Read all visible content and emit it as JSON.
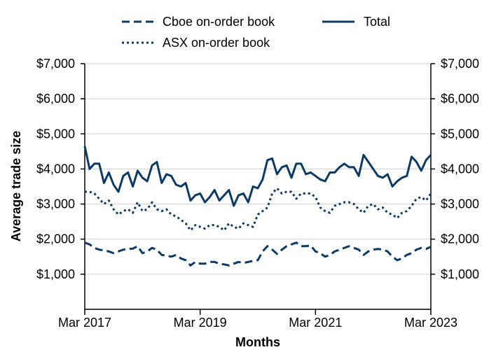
{
  "chart_data": {
    "type": "line",
    "xlabel": "Months",
    "ylabel": "Average trade size",
    "x_tick_labels": [
      "Mar 2017",
      "Mar 2019",
      "Mar 2021",
      "Mar 2023"
    ],
    "y_tick_labels_left": [
      "$1,000",
      "$2,000",
      "$3,000",
      "$4,000",
      "$5,000",
      "$6,000",
      "$7,000"
    ],
    "y_tick_labels_right": [
      "$1,000",
      "$2,000",
      "$3,000",
      "$4,000",
      "$5,000",
      "$6,000",
      "$7,000"
    ],
    "y_ticks": [
      1000,
      2000,
      3000,
      4000,
      5000,
      6000,
      7000
    ],
    "ylim": [
      0,
      7000
    ],
    "x_start": "Mar 2017",
    "x_end": "Mar 2023",
    "grid": "horizontal",
    "legend_position": "top",
    "color": "#0c3a66",
    "x": [
      "Mar 2017",
      "Apr 2017",
      "May 2017",
      "Jun 2017",
      "Jul 2017",
      "Aug 2017",
      "Sep 2017",
      "Oct 2017",
      "Nov 2017",
      "Dec 2017",
      "Jan 2018",
      "Feb 2018",
      "Mar 2018",
      "Apr 2018",
      "May 2018",
      "Jun 2018",
      "Jul 2018",
      "Aug 2018",
      "Sep 2018",
      "Oct 2018",
      "Nov 2018",
      "Dec 2018",
      "Jan 2019",
      "Feb 2019",
      "Mar 2019",
      "Apr 2019",
      "May 2019",
      "Jun 2019",
      "Jul 2019",
      "Aug 2019",
      "Sep 2019",
      "Oct 2019",
      "Nov 2019",
      "Dec 2019",
      "Jan 2020",
      "Feb 2020",
      "Mar 2020",
      "Apr 2020",
      "May 2020",
      "Jun 2020",
      "Jul 2020",
      "Aug 2020",
      "Sep 2020",
      "Oct 2020",
      "Nov 2020",
      "Dec 2020",
      "Jan 2021",
      "Feb 2021",
      "Mar 2021",
      "Apr 2021",
      "May 2021",
      "Jun 2021",
      "Jul 2021",
      "Aug 2021",
      "Sep 2021",
      "Oct 2021",
      "Nov 2021",
      "Dec 2021",
      "Jan 2022",
      "Feb 2022",
      "Mar 2022",
      "Apr 2022",
      "May 2022",
      "Jun 2022",
      "Jul 2022",
      "Aug 2022",
      "Sep 2022",
      "Oct 2022",
      "Nov 2022",
      "Dec 2022",
      "Jan 2023",
      "Feb 2023",
      "Mar 2023"
    ],
    "series": [
      {
        "name": "Cboe on-order book",
        "dash": "dashed",
        "values": [
          1900,
          1850,
          1750,
          1700,
          1680,
          1650,
          1600,
          1650,
          1700,
          1720,
          1730,
          1800,
          1600,
          1650,
          1750,
          1700,
          1550,
          1530,
          1500,
          1550,
          1450,
          1400,
          1250,
          1350,
          1300,
          1300,
          1350,
          1350,
          1300,
          1280,
          1250,
          1300,
          1350,
          1320,
          1350,
          1380,
          1400,
          1650,
          1800,
          1700,
          1580,
          1700,
          1800,
          1850,
          1900,
          1800,
          1800,
          1820,
          1650,
          1600,
          1500,
          1550,
          1650,
          1700,
          1750,
          1800,
          1750,
          1700,
          1550,
          1650,
          1700,
          1720,
          1700,
          1650,
          1500,
          1400,
          1450,
          1550,
          1600,
          1700,
          1750,
          1720,
          1780
        ]
      },
      {
        "name": "ASX on-order book",
        "dash": "dotted",
        "values": [
          3350,
          3350,
          3300,
          3150,
          3000,
          3100,
          2850,
          2700,
          2800,
          2850,
          2750,
          3050,
          2800,
          2850,
          3050,
          2850,
          2800,
          2850,
          2700,
          2650,
          2550,
          2450,
          2250,
          2400,
          2350,
          2300,
          2400,
          2400,
          2350,
          2250,
          2450,
          2350,
          2300,
          2450,
          2400,
          2350,
          2700,
          2800,
          2900,
          3300,
          3450,
          3300,
          3350,
          3350,
          3150,
          3300,
          3300,
          3300,
          3200,
          2900,
          2800,
          2750,
          2950,
          3000,
          3050,
          3050,
          3000,
          2850,
          2750,
          2950,
          3000,
          2850,
          2900,
          2750,
          2700,
          2600,
          2750,
          2800,
          2950,
          3150,
          3200,
          3100,
          3300
        ]
      },
      {
        "name": "Total",
        "dash": "solid",
        "values": [
          4650,
          4000,
          4150,
          4150,
          3600,
          3900,
          3550,
          3350,
          3800,
          3900,
          3500,
          3950,
          3750,
          3650,
          4100,
          4200,
          3600,
          3850,
          3800,
          3550,
          3500,
          3600,
          3100,
          3250,
          3300,
          3050,
          3200,
          3400,
          3100,
          3250,
          3400,
          2950,
          3250,
          3300,
          3050,
          3500,
          3450,
          3700,
          4250,
          4300,
          3850,
          4050,
          4100,
          3750,
          4150,
          4150,
          3850,
          3900,
          3800,
          3700,
          3650,
          3900,
          3900,
          4050,
          4150,
          4050,
          4050,
          3800,
          4400,
          4200,
          4000,
          3800,
          3750,
          3850,
          3500,
          3650,
          3750,
          3800,
          4350,
          4200,
          3950,
          4250,
          4400
        ]
      }
    ]
  }
}
